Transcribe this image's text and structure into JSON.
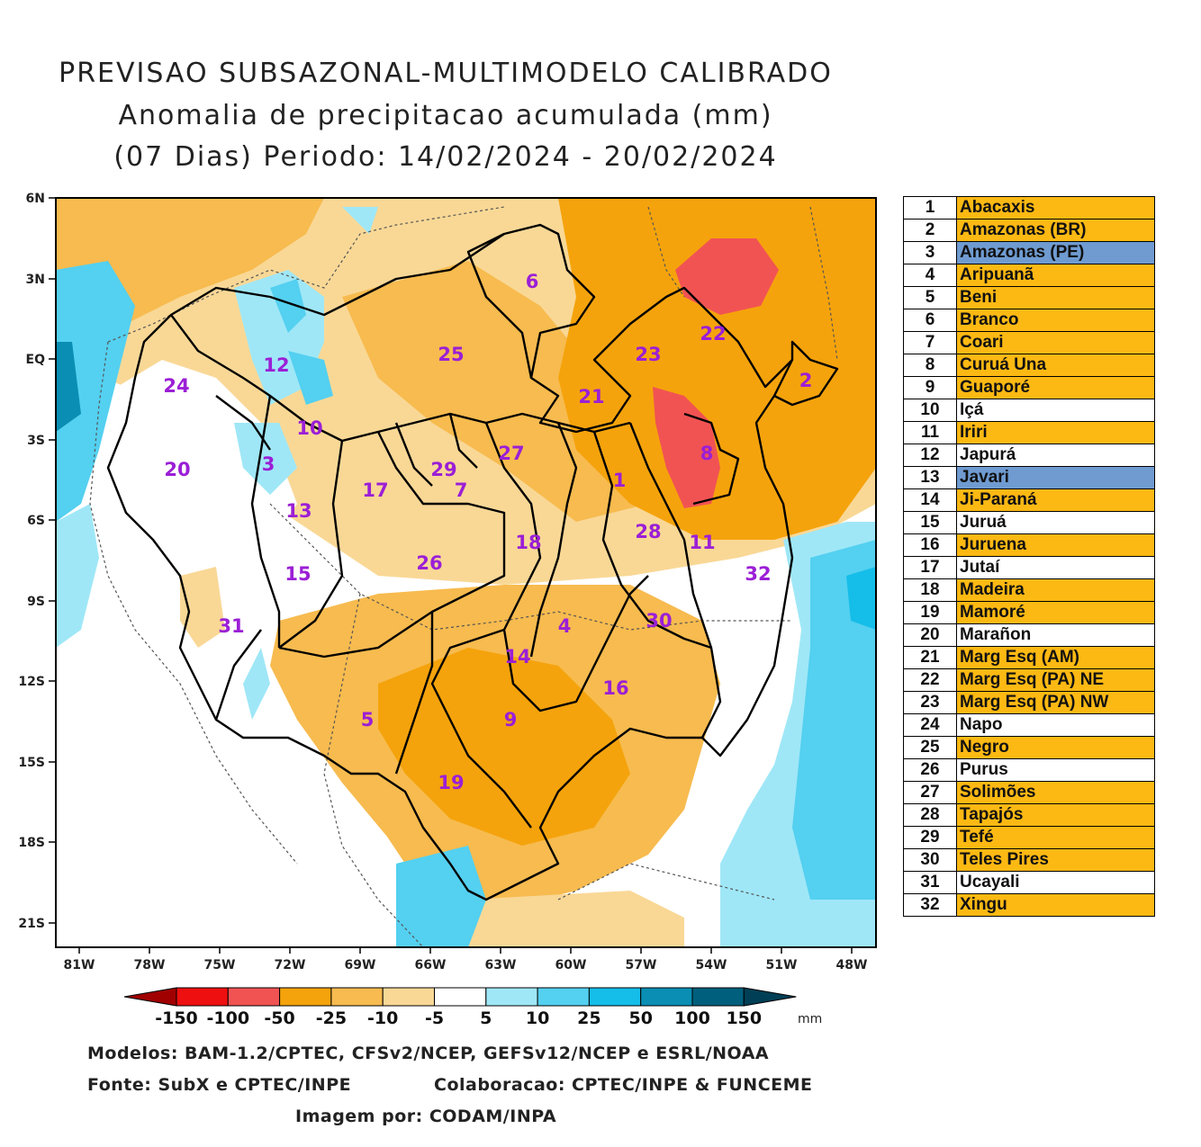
{
  "title": {
    "line1": "PREVISAO SUBSAZONAL-MULTIMODELO CALIBRADO",
    "line2": "Anomalia de precipitacao acumulada (mm)",
    "line3": "(07 Dias) Periodo: 14/02/2024 - 20/02/2024"
  },
  "axes": {
    "lat_labels": [
      "6N",
      "3N",
      "EQ",
      "3S",
      "6S",
      "9S",
      "12S",
      "15S",
      "18S",
      "21S"
    ],
    "lon_labels": [
      "81W",
      "78W",
      "75W",
      "72W",
      "69W",
      "66W",
      "63W",
      "60W",
      "57W",
      "54W",
      "51W",
      "48W"
    ]
  },
  "colorbar": {
    "ticks": [
      "-150",
      "-100",
      "-50",
      "-25",
      "-10",
      "-5",
      "5",
      "10",
      "25",
      "50",
      "100",
      "150"
    ],
    "unit": "mm",
    "colors": [
      "#a00000",
      "#ee1010",
      "#f15353",
      "#f5a30c",
      "#f7bb4f",
      "#f9d896",
      "#ffffff",
      "#9fe7f7",
      "#54d0f0",
      "#15bde9",
      "#0a8eb3",
      "#005f7c",
      "#003f55"
    ]
  },
  "basins": [
    {
      "num": "1",
      "name": "Abacaxis",
      "color": "#fdb913"
    },
    {
      "num": "2",
      "name": "Amazonas (BR)",
      "color": "#fdb913"
    },
    {
      "num": "3",
      "name": "Amazonas (PE)",
      "color": "#6f9bd1"
    },
    {
      "num": "4",
      "name": "Aripuanã",
      "color": "#fdb913"
    },
    {
      "num": "5",
      "name": "Beni",
      "color": "#fdb913"
    },
    {
      "num": "6",
      "name": "Branco",
      "color": "#fdb913"
    },
    {
      "num": "7",
      "name": "Coari",
      "color": "#fdb913"
    },
    {
      "num": "8",
      "name": "Curuá Una",
      "color": "#fdb913"
    },
    {
      "num": "9",
      "name": "Guaporé",
      "color": "#fdb913"
    },
    {
      "num": "10",
      "name": "Içá",
      "color": "#ffffff"
    },
    {
      "num": "11",
      "name": "Iriri",
      "color": "#fdb913"
    },
    {
      "num": "12",
      "name": "Japurá",
      "color": "#ffffff"
    },
    {
      "num": "13",
      "name": "Javari",
      "color": "#6f9bd1"
    },
    {
      "num": "14",
      "name": "Ji-Paraná",
      "color": "#fdb913"
    },
    {
      "num": "15",
      "name": "Juruá",
      "color": "#ffffff"
    },
    {
      "num": "16",
      "name": "Juruena",
      "color": "#fdb913"
    },
    {
      "num": "17",
      "name": "Jutaí",
      "color": "#ffffff"
    },
    {
      "num": "18",
      "name": "Madeira",
      "color": "#fdb913"
    },
    {
      "num": "19",
      "name": "Mamoré",
      "color": "#fdb913"
    },
    {
      "num": "20",
      "name": "Marañon",
      "color": "#ffffff"
    },
    {
      "num": "21",
      "name": "Marg Esq (AM)",
      "color": "#fdb913"
    },
    {
      "num": "22",
      "name": "Marg Esq (PA) NE",
      "color": "#fdb913"
    },
    {
      "num": "23",
      "name": "Marg Esq (PA) NW",
      "color": "#fdb913"
    },
    {
      "num": "24",
      "name": "Napo",
      "color": "#ffffff"
    },
    {
      "num": "25",
      "name": "Negro",
      "color": "#fdb913"
    },
    {
      "num": "26",
      "name": "Purus",
      "color": "#ffffff"
    },
    {
      "num": "27",
      "name": "Solimões",
      "color": "#fdb913"
    },
    {
      "num": "28",
      "name": "Tapajós",
      "color": "#fdb913"
    },
    {
      "num": "29",
      "name": "Tefé",
      "color": "#fdb913"
    },
    {
      "num": "30",
      "name": "Teles Pires",
      "color": "#fdb913"
    },
    {
      "num": "31",
      "name": "Ucayali",
      "color": "#ffffff"
    },
    {
      "num": "32",
      "name": "Xingu",
      "color": "#fdb913"
    }
  ],
  "footer": {
    "models": "Modelos: BAM-1.2/CPTEC, CFSv2/NCEP, GEFSv12/NCEP e ESRL/NOAA",
    "source": "Fonte: SubX e CPTEC/INPE",
    "collab": "Colaboracao: CPTEC/INPE & FUNCEME",
    "image": "Imagem por: CODAM/INPA"
  }
}
